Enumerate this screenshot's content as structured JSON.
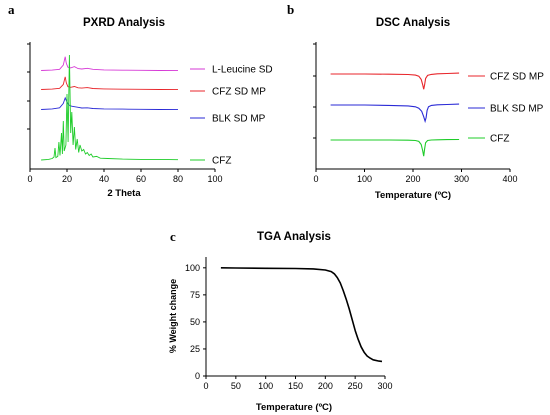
{
  "chart_data": [
    {
      "panel": "a",
      "type": "line",
      "title": "PXRD Analysis",
      "xlabel": "2 Theta",
      "ylabel": "",
      "xlim": [
        0,
        100
      ],
      "xticks": [
        0,
        20,
        40,
        60,
        80,
        100
      ],
      "legend_placement": "right",
      "grid": false,
      "series": [
        {
          "name": "L-Leucine SD",
          "color": "#d63ad6",
          "offset": 3,
          "x": [
            6,
            12,
            16,
            18,
            19,
            19.6,
            20.5,
            22,
            24,
            26,
            28,
            31,
            34,
            40,
            50,
            60,
            70,
            80
          ],
          "y": [
            0.05,
            0.08,
            0.15,
            0.55,
            1.3,
            0.7,
            0.35,
            0.28,
            0.4,
            0.22,
            0.18,
            0.25,
            0.15,
            0.1,
            0.07,
            0.06,
            0.05,
            0.04
          ]
        },
        {
          "name": "CFZ SD MP",
          "color": "#e8262b",
          "offset": 2,
          "x": [
            6,
            12,
            16,
            18,
            19,
            19.6,
            20.5,
            22,
            24,
            26,
            28,
            31,
            34,
            40,
            50,
            60,
            70,
            80
          ],
          "y": [
            0.05,
            0.08,
            0.15,
            0.5,
            1.2,
            0.65,
            0.3,
            0.25,
            0.32,
            0.2,
            0.17,
            0.22,
            0.14,
            0.1,
            0.07,
            0.06,
            0.05,
            0.04
          ]
        },
        {
          "name": "BLK SD MP",
          "color": "#2a2ad6",
          "offset": 1,
          "x": [
            6,
            12,
            16,
            18,
            19,
            19.8,
            21,
            22.5,
            24,
            26,
            28,
            31,
            34,
            40,
            50,
            60,
            70,
            80
          ],
          "y": [
            0.05,
            0.1,
            0.2,
            0.6,
            1.1,
            0.8,
            0.45,
            0.35,
            0.3,
            0.25,
            0.18,
            0.2,
            0.14,
            0.1,
            0.08,
            0.06,
            0.05,
            0.04
          ]
        },
        {
          "name": "CFZ",
          "color": "#1fcc2a",
          "offset": 0,
          "x": [
            6,
            10,
            12,
            13,
            13.5,
            14,
            15,
            15.6,
            16.2,
            17,
            17.5,
            18,
            18.5,
            19.4,
            20,
            20.6,
            21.3,
            22,
            22.6,
            23.3,
            24,
            24.7,
            25.5,
            26.3,
            27,
            28,
            29,
            30,
            31,
            32,
            33,
            34,
            36,
            38,
            42,
            50,
            60,
            70,
            80
          ],
          "y": [
            0,
            0.02,
            0.05,
            0.1,
            0.4,
            0.08,
            0.12,
            0.6,
            0.15,
            0.9,
            0.2,
            1.3,
            0.3,
            0.5,
            2.2,
            0.6,
            3.5,
            0.9,
            1.6,
            0.5,
            1.1,
            0.35,
            0.7,
            0.25,
            0.5,
            0.3,
            0.35,
            0.2,
            0.25,
            0.15,
            0.2,
            0.1,
            0.12,
            0.06,
            0.05,
            0.03,
            0.02,
            0.02,
            0.01
          ]
        }
      ]
    },
    {
      "panel": "b",
      "type": "line",
      "title": "DSC Analysis",
      "xlabel": "Temperature (ºC)",
      "ylabel": "",
      "xlim": [
        0,
        400
      ],
      "xticks": [
        0,
        100,
        200,
        300,
        400
      ],
      "legend_placement": "right",
      "grid": false,
      "series": [
        {
          "name": "CFZ SD MP",
          "color": "#e8262b",
          "offset": 2,
          "x": [
            30,
            100,
            150,
            190,
            205,
            212,
            217,
            220,
            222,
            224,
            226,
            230,
            238,
            250,
            270,
            295
          ],
          "y": [
            0,
            0,
            -0.01,
            -0.03,
            -0.06,
            -0.12,
            -0.3,
            -0.6,
            -0.85,
            -0.6,
            -0.25,
            -0.08,
            -0.02,
            0.01,
            0.03,
            0.05
          ]
        },
        {
          "name": "BLK SD MP",
          "color": "#2a2ad6",
          "offset": 1,
          "x": [
            30,
            100,
            150,
            190,
            205,
            212,
            218,
            222,
            225,
            227,
            229,
            232,
            238,
            250,
            270,
            295
          ],
          "y": [
            0,
            0,
            -0.02,
            -0.05,
            -0.1,
            -0.18,
            -0.35,
            -0.65,
            -0.9,
            -0.7,
            -0.3,
            -0.1,
            -0.02,
            0.01,
            0.03,
            0.05
          ]
        },
        {
          "name": "CFZ",
          "color": "#1fcc2a",
          "offset": 0,
          "x": [
            30,
            100,
            150,
            190,
            205,
            212,
            217,
            220,
            222,
            224,
            226,
            230,
            238,
            250,
            270,
            295
          ],
          "y": [
            0,
            0,
            0,
            -0.01,
            -0.03,
            -0.08,
            -0.25,
            -0.6,
            -0.9,
            -0.5,
            -0.15,
            -0.03,
            0,
            0.01,
            0.02,
            0.03
          ]
        }
      ]
    },
    {
      "panel": "c",
      "type": "line",
      "title": "TGA Analysis",
      "xlabel": "Temperature (ºC)",
      "ylabel": "% Weight change",
      "xlim": [
        0,
        300
      ],
      "ylim": [
        0,
        110
      ],
      "xticks": [
        0,
        50,
        100,
        150,
        200,
        250,
        300
      ],
      "yticks": [
        0,
        25,
        50,
        75,
        100
      ],
      "grid": false,
      "series": [
        {
          "name": "TGA",
          "color": "#000000",
          "x": [
            25,
            50,
            100,
            150,
            180,
            200,
            210,
            215,
            220,
            225,
            230,
            235,
            240,
            245,
            250,
            255,
            260,
            265,
            270,
            275,
            280,
            290,
            295
          ],
          "y": [
            100,
            99.8,
            99.6,
            99.4,
            99,
            98,
            96.5,
            94.5,
            91,
            86,
            79,
            71,
            62,
            52,
            42,
            34,
            27,
            22,
            18.5,
            16.5,
            15,
            13.8,
            13.5
          ]
        }
      ]
    }
  ]
}
